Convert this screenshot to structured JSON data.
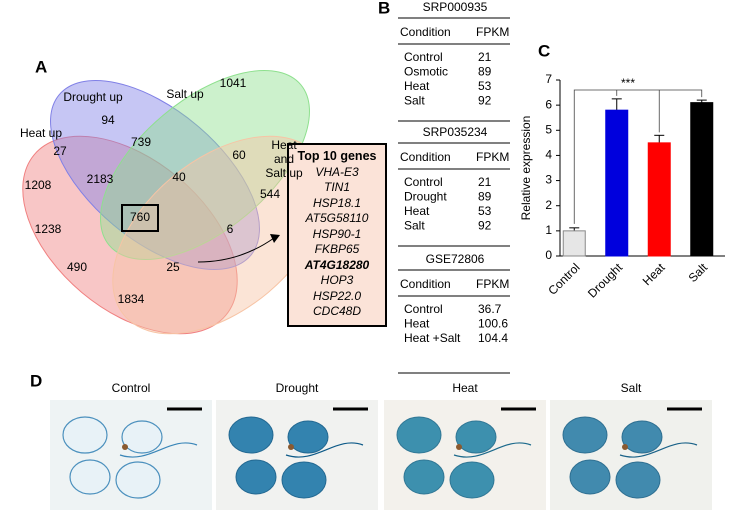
{
  "panel_labels": [
    "A",
    "B",
    "C",
    "D"
  ],
  "venn": {
    "sets": [
      {
        "name": "Heat up",
        "color": "#f08080"
      },
      {
        "name": "Drought up",
        "color": "#8080e6"
      },
      {
        "name": "Salt up",
        "color": "#8ee08e"
      },
      {
        "name": "Heat and Salt up",
        "color": "#f7c4a5"
      }
    ],
    "regions": [
      94,
      1041,
      1208,
      544,
      739,
      27,
      60,
      2183,
      40,
      760,
      6,
      1238,
      490,
      25,
      1834
    ]
  },
  "top_genes": {
    "title": "Top 10 genes",
    "genes": [
      {
        "name": "VHA-E3"
      },
      {
        "name": "TIN1"
      },
      {
        "name": "HSP18.1"
      },
      {
        "name": "AT5G58110"
      },
      {
        "name": "HSP90-1"
      },
      {
        "name": "FKBP65"
      },
      {
        "name": "AT4G18280",
        "bold": true
      },
      {
        "name": "HOP3"
      },
      {
        "name": "HSP22.0"
      },
      {
        "name": "CDC48D"
      }
    ]
  },
  "tables": [
    {
      "title": "SRP000935",
      "header": [
        "Condition",
        "FPKM"
      ],
      "rows": [
        [
          "Control",
          21
        ],
        [
          "Osmotic",
          89
        ],
        [
          "Heat",
          53
        ],
        [
          "Salt",
          92
        ]
      ]
    },
    {
      "title": "SRP035234",
      "header": [
        "Condition",
        "FPKM"
      ],
      "rows": [
        [
          "Control",
          21
        ],
        [
          "Drought",
          89
        ],
        [
          "Heat",
          53
        ],
        [
          "Salt",
          92
        ]
      ]
    },
    {
      "title": "GSE72806",
      "header": [
        "Condition",
        "FPKM"
      ],
      "rows": [
        [
          "Control",
          36.7
        ],
        [
          "Heat",
          100.6
        ],
        [
          "Heat +Salt",
          104.4
        ]
      ]
    }
  ],
  "chart_data": {
    "type": "bar",
    "ylabel": "Relative expression",
    "categories": [
      "Control",
      "Drought",
      "Heat",
      "Salt"
    ],
    "values": [
      1,
      5.8,
      4.5,
      6.1
    ],
    "errors": [
      0.12,
      0.45,
      0.3,
      0.1
    ],
    "colors": [
      "#e6e6e6",
      "#0000dd",
      "#ff0000",
      "#000000"
    ],
    "ylim": [
      0,
      7
    ],
    "yticks": [
      0,
      1,
      2,
      3,
      4,
      5,
      6,
      7
    ],
    "annotation": "***"
  },
  "photos": {
    "labels": [
      "Control",
      "Drought",
      "Heat",
      "Salt"
    ]
  }
}
